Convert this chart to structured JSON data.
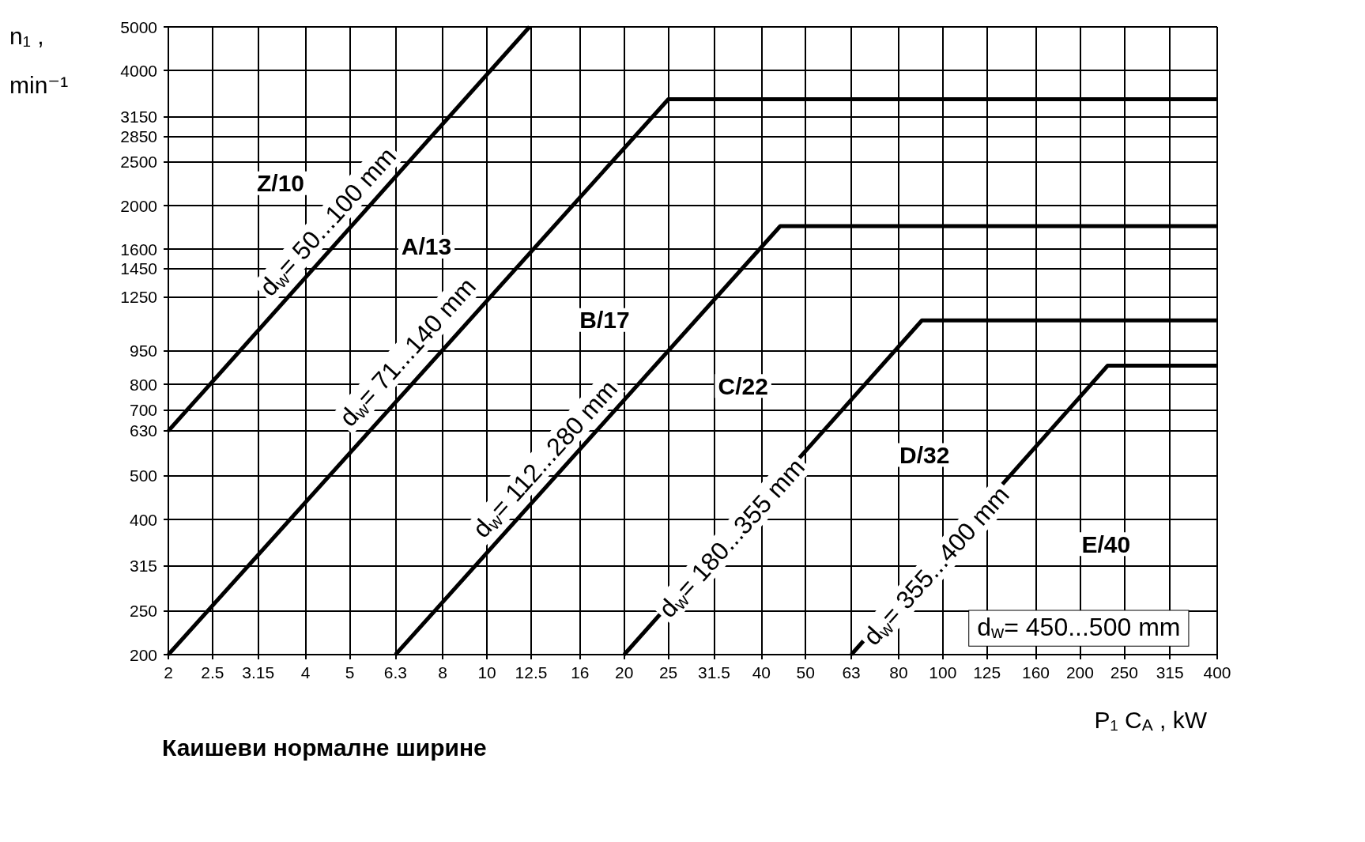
{
  "chart_data": {
    "type": "line",
    "xlabel": "P₁ C$_{A}$ , kW",
    "ylabel": "n₁ ,\nmin⁻¹",
    "log": "xy",
    "grid": true,
    "marker": "none",
    "line_style": "solid",
    "xlim": [
      2,
      400
    ],
    "ylim": [
      200,
      5000
    ],
    "xticks": [
      2,
      2.5,
      3.15,
      4,
      5,
      6.3,
      8,
      10,
      12.5,
      16,
      20,
      25,
      31.5,
      40,
      50,
      63,
      80,
      100,
      125,
      160,
      200,
      250,
      315,
      400
    ],
    "yticks": [
      200,
      250,
      315,
      400,
      500,
      630,
      700,
      800,
      950,
      1250,
      1450,
      1600,
      2000,
      2500,
      2850,
      3150,
      4000,
      5000
    ],
    "series": [
      {
        "color": "#000000",
        "x": [
          2,
          12.4
        ],
        "values": [
          630,
          5000
        ]
      },
      {
        "color": "#000000",
        "x": [
          2,
          25,
          400
        ],
        "values": [
          200,
          3450,
          3450
        ]
      },
      {
        "color": "#000000",
        "x": [
          6.3,
          44,
          400
        ],
        "values": [
          200,
          1800,
          1800
        ]
      },
      {
        "color": "#000000",
        "x": [
          20,
          90,
          400
        ],
        "values": [
          200,
          1110,
          1110
        ]
      },
      {
        "color": "#000000",
        "x": [
          63,
          230,
          400
        ],
        "values": [
          200,
          880,
          880
        ]
      }
    ],
    "annotations": [
      "Z/10",
      "d$_{w}$= 50...100 mm",
      "A/13",
      "d$_{w}$= 71...140 mm",
      "B/17",
      "d$_{w}$= 112...280 mm",
      "C/22",
      "d$_{w}$= 180...355 mm",
      "D/32",
      "d$_{w}$= 355...400 mm",
      "E/40",
      "d$_{w}$= 450...500 mm",
      "Каишеви нормалне ширине"
    ]
  }
}
